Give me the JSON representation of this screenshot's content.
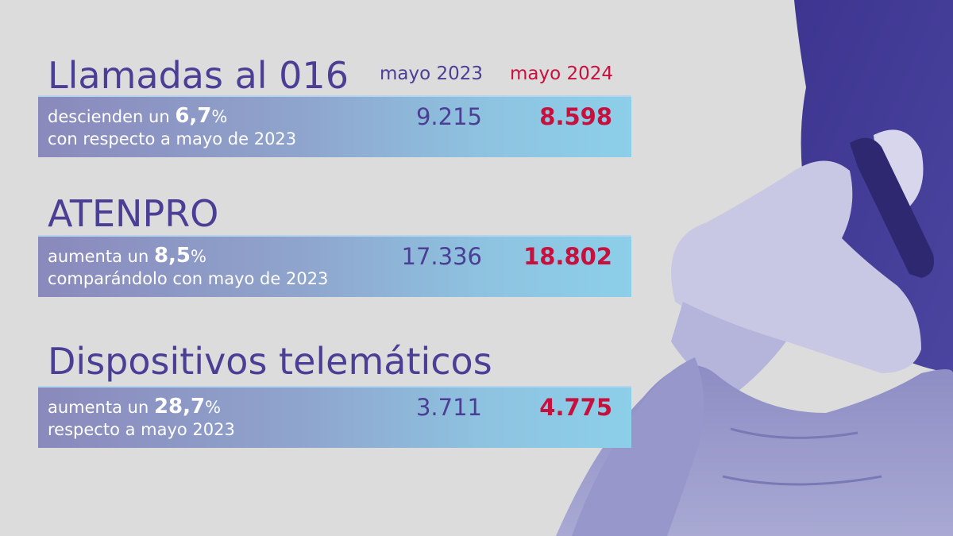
{
  "headers": {
    "col_2023": "mayo 2023",
    "col_2024": "mayo 2024"
  },
  "sections": [
    {
      "title": "Llamadas al 016",
      "desc_prefix": "descienden un ",
      "pct_value": "6,7",
      "pct_sign": "%",
      "desc_line2": "con respecto a mayo de 2023",
      "value_2023": "9.215",
      "value_2024": "8.598"
    },
    {
      "title": "ATENPRO",
      "desc_prefix": "aumenta un ",
      "pct_value": "8,5",
      "pct_sign": "%",
      "desc_line2": "comparándolo con mayo de 2023",
      "value_2023": "17.336",
      "value_2024": "18.802"
    },
    {
      "title": "Dispositivos telemáticos",
      "desc_prefix": "aumenta un ",
      "pct_value": "28,7",
      "pct_sign": "%",
      "desc_line2": "respecto a mayo 2023",
      "value_2023": "3.711",
      "value_2024": "4.775"
    }
  ],
  "colors": {
    "primary": "#4a3f95",
    "accent": "#c8103e",
    "background": "#dcdcdc"
  },
  "image": {
    "subject": "woman-on-phone-photo"
  }
}
